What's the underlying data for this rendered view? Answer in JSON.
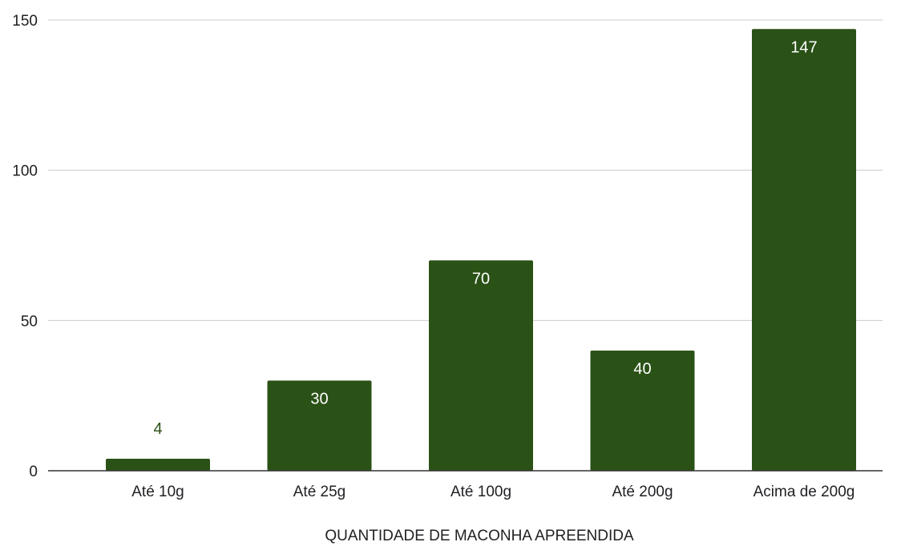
{
  "chart_data": {
    "type": "bar",
    "categories": [
      "Até 10g",
      "Até 25g",
      "Até 100g",
      "Até 200g",
      "Acima de 200g"
    ],
    "values": [
      4,
      30,
      70,
      40,
      147
    ],
    "title": "",
    "xlabel": "QUANTIDADE DE MACONHA APREENDIDA",
    "ylabel": "",
    "ylim": [
      0,
      150
    ],
    "yticks": [
      0,
      50,
      100,
      150
    ],
    "grid": true,
    "legend": "none",
    "colors": {
      "bar": "#2a5116",
      "label_inside": "#ffffff",
      "label_outside": "#2a5116",
      "grid": "#cccccc",
      "axis": "#333333"
    }
  }
}
